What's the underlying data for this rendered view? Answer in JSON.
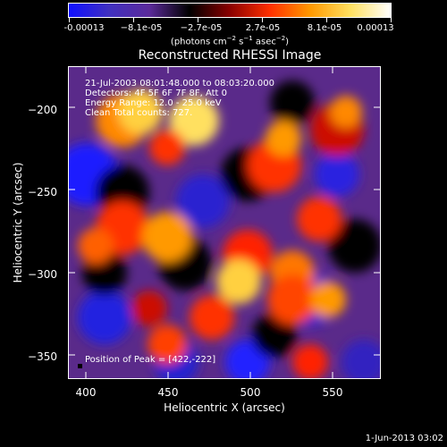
{
  "colorbar": {
    "ticks": [
      "-0.00013",
      "−8.1e-05",
      "−2.7e-05",
      "2.7e-05",
      "8.1e-05",
      "0.00013"
    ],
    "units_main": "(photons cm",
    "units_sup1": "−2",
    "units_mid": " s",
    "units_sup2": "−1",
    "units_mid2": " asec",
    "units_sup3": "−2",
    "units_end": ")",
    "colors": [
      "#1010ff",
      "#4030c0",
      "#5b2a9a",
      "#000000",
      "#8a0000",
      "#ff3000",
      "#ff9900",
      "#ffe060",
      "#ffffff"
    ]
  },
  "plot": {
    "title": "Reconstructed RHESSI Image",
    "info_lines": [
      "21-Jul-2003 08:01:48.000 to 08:03:20.000",
      "Detectors: 4F 5F 6F 7F 8F, Att 0",
      "Energy Range: 12.0 - 25.0 keV",
      "Clean     Total counts: 727."
    ],
    "peak_text": "Position of Peak = [422,-222]",
    "xlabel": "Heliocentric X (arcsec)",
    "ylabel": "Heliocentric Y (arcsec)",
    "xticks": [
      "400",
      "450",
      "500",
      "550"
    ],
    "yticks": [
      "−200",
      "−250",
      "−300",
      "−350"
    ]
  },
  "footer": {
    "date": "1-Jun-2013 03:02"
  },
  "chart_data": {
    "type": "heatmap",
    "title": "Reconstructed RHESSI Image",
    "xlabel": "Heliocentric X (arcsec)",
    "ylabel": "Heliocentric Y (arcsec)",
    "xlim": [
      390,
      580
    ],
    "ylim": [
      -365,
      -175
    ],
    "clim": [
      -0.00013,
      0.00013
    ],
    "peak": [
      422,
      -222
    ]
  }
}
